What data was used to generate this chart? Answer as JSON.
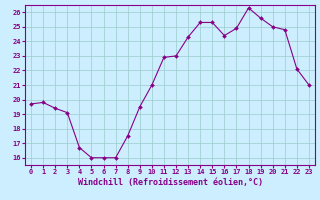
{
  "x": [
    0,
    1,
    2,
    3,
    4,
    5,
    6,
    7,
    8,
    9,
    10,
    11,
    12,
    13,
    14,
    15,
    16,
    17,
    18,
    19,
    20,
    21,
    22,
    23
  ],
  "y": [
    19.7,
    19.8,
    19.4,
    19.1,
    16.7,
    16.0,
    16.0,
    16.0,
    17.5,
    19.5,
    21.0,
    22.9,
    23.0,
    24.3,
    25.3,
    25.3,
    24.4,
    24.9,
    26.3,
    25.6,
    25.0,
    24.8,
    22.1,
    21.0
  ],
  "line_color": "#880088",
  "marker": "D",
  "marker_size": 2.0,
  "bg_color": "#cceeff",
  "grid_color": "#99cccc",
  "xlabel": "Windchill (Refroidissement éolien,°C)",
  "xlim": [
    -0.5,
    23.5
  ],
  "ylim": [
    15.5,
    26.5
  ],
  "yticks": [
    16,
    17,
    18,
    19,
    20,
    21,
    22,
    23,
    24,
    25,
    26
  ],
  "xticks": [
    0,
    1,
    2,
    3,
    4,
    5,
    6,
    7,
    8,
    9,
    10,
    11,
    12,
    13,
    14,
    15,
    16,
    17,
    18,
    19,
    20,
    21,
    22,
    23
  ],
  "tick_label_color": "#880088",
  "tick_fontsize": 5.0,
  "xlabel_fontsize": 6.0,
  "linewidth": 0.8
}
